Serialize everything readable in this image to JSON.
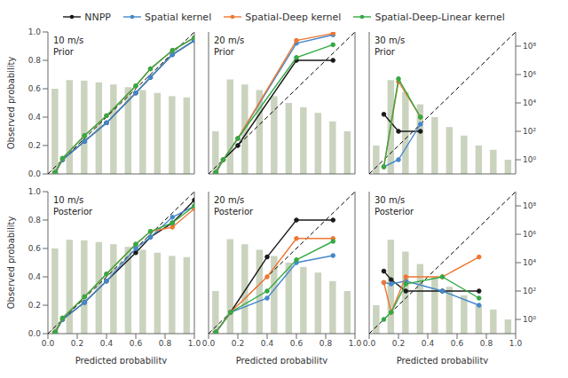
{
  "chart_data": [
    {
      "type": "line",
      "title": "10 m/s\nPrior",
      "legend": "top",
      "log": "y2",
      "y_label": "Observed probability",
      "xlim": [
        0,
        1
      ],
      "ylim": [
        0,
        1
      ],
      "y2lim": [
        0.1,
        1000000000.0
      ],
      "yticks": [
        {
          "value": 0,
          "label": "0.0"
        },
        0.2,
        0.4,
        0.6,
        0.8,
        {
          "value": 1,
          "label": "1.0"
        }
      ],
      "series": [
        {
          "type": "bar",
          "axis": "y2",
          "color": "#b8c4a8",
          "bins": [
            0.0,
            0.1,
            0.2,
            0.3,
            0.4,
            0.5,
            0.6,
            0.7,
            0.8,
            0.9,
            1.0
          ],
          "values": [
            100000.0,
            400000.0,
            370000.0,
            280000.0,
            200000.0,
            130000.0,
            80000.0,
            50000.0,
            30000.0,
            25000.0
          ]
        },
        {
          "type": "line",
          "color": "black",
          "line_style": "dashed",
          "x": [
            0,
            1
          ],
          "values": [
            0,
            1
          ]
        },
        {
          "name": "NNPP",
          "type": "line",
          "color": "#1a1a1a",
          "marker": "circle",
          "line_style": "solid",
          "x": [
            0.05,
            0.1,
            0.25,
            0.4,
            0.6,
            0.7,
            0.85,
            1.0
          ],
          "values": [
            0.01,
            0.1,
            0.23,
            0.36,
            0.57,
            0.68,
            0.84,
            0.94
          ]
        },
        {
          "name": "Spatial kernel",
          "type": "line",
          "color": "#4488CC",
          "marker": "circle",
          "line_style": "solid",
          "x": [
            0.05,
            0.1,
            0.25,
            0.4,
            0.6,
            0.7,
            0.85,
            1.0
          ],
          "values": [
            0.01,
            0.1,
            0.23,
            0.36,
            0.57,
            0.68,
            0.84,
            0.94
          ]
        },
        {
          "name": "Spatial-Deep kernel",
          "type": "line",
          "color": "#EE7733",
          "marker": "circle",
          "line_style": "solid",
          "x": [
            0.05,
            0.1,
            0.25,
            0.4,
            0.6,
            0.7,
            0.85,
            1.0
          ],
          "values": [
            0.01,
            0.11,
            0.27,
            0.41,
            0.62,
            0.74,
            0.87,
            0.96
          ]
        },
        {
          "name": "Spatial-Deep-Linear kernel",
          "type": "line",
          "color": "#33AA44",
          "marker": "circle",
          "line_style": "solid",
          "x": [
            0.05,
            0.1,
            0.25,
            0.4,
            0.6,
            0.7,
            0.85,
            1.0
          ],
          "values": [
            0.01,
            0.11,
            0.27,
            0.41,
            0.62,
            0.74,
            0.87,
            0.96
          ]
        }
      ]
    },
    {
      "type": "line",
      "title": "20 m/s\nPrior",
      "log": "y2",
      "xlim": [
        0,
        1
      ],
      "ylim": [
        0,
        1
      ],
      "y2lim": [
        0.1,
        1000000000.0
      ],
      "series": [
        {
          "type": "bar",
          "axis": "y2",
          "color": "#b8c4a8",
          "bins": [
            0.0,
            0.1,
            0.2,
            0.3,
            0.4,
            0.5,
            0.6,
            0.7,
            0.8,
            0.9,
            1.0
          ],
          "values": [
            100.0,
            450000.0,
            200000.0,
            80000.0,
            30000.0,
            10000.0,
            5000.0,
            2000.0,
            500.0,
            100.0
          ]
        },
        {
          "type": "line",
          "color": "black",
          "line_style": "dashed",
          "x": [
            0,
            1
          ],
          "values": [
            0,
            1
          ]
        },
        {
          "name": "NNPP",
          "type": "line",
          "color": "#1a1a1a",
          "marker": "circle",
          "line_style": "solid",
          "x": [
            0.05,
            0.1,
            0.2,
            0.6,
            0.85
          ],
          "values": [
            0.01,
            0.1,
            0.2,
            0.8,
            0.8
          ]
        },
        {
          "name": "Spatial kernel",
          "type": "line",
          "color": "#4488CC",
          "marker": "circle",
          "line_style": "solid",
          "x": [
            0.05,
            0.1,
            0.2,
            0.6,
            0.85
          ],
          "values": [
            0.01,
            0.1,
            0.25,
            0.92,
            0.98
          ]
        },
        {
          "name": "Spatial-Deep kernel",
          "type": "line",
          "color": "#EE7733",
          "marker": "circle",
          "line_style": "solid",
          "x": [
            0.05,
            0.1,
            0.2,
            0.6,
            0.85
          ],
          "values": [
            0.01,
            0.1,
            0.25,
            0.94,
            0.99
          ]
        },
        {
          "name": "Spatial-Deep-Linear kernel",
          "type": "line",
          "color": "#33AA44",
          "marker": "circle",
          "line_style": "solid",
          "x": [
            0.05,
            0.1,
            0.2,
            0.6,
            0.85
          ],
          "values": [
            0.01,
            0.1,
            0.25,
            0.82,
            0.91
          ]
        }
      ]
    },
    {
      "type": "line",
      "title": "30 m/s\nPrior",
      "log": "y2",
      "xlim": [
        0,
        1
      ],
      "ylim": [
        0,
        1
      ],
      "y2lim": [
        0.1,
        1000000000.0
      ],
      "y2ticks": [
        {
          "value": 1,
          "label": "10⁰"
        },
        {
          "value": 100,
          "label": "10²"
        },
        {
          "value": 10000,
          "label": "10⁴"
        },
        {
          "value": 1000000,
          "label": "10⁶"
        },
        {
          "value": 100000000,
          "label": "10⁸"
        }
      ],
      "series": [
        {
          "type": "bar",
          "axis": "y2",
          "color": "#b8c4a8",
          "bins": [
            0.0,
            0.1,
            0.2,
            0.3,
            0.4,
            0.5,
            0.6,
            0.7,
            0.8,
            0.9,
            1.0
          ],
          "values": [
            10.0,
            400000.0,
            60000.0,
            8000.0,
            1000.0,
            200.0,
            50.0,
            10.0,
            5.0,
            1.0
          ]
        },
        {
          "type": "line",
          "color": "black",
          "line_style": "dashed",
          "x": [
            0,
            1
          ],
          "values": [
            0,
            1
          ]
        },
        {
          "name": "NNPP",
          "type": "line",
          "color": "#1a1a1a",
          "marker": "circle",
          "line_style": "solid",
          "x": [
            0.1,
            0.2,
            0.35
          ],
          "values": [
            0.42,
            0.3,
            0.3
          ]
        },
        {
          "name": "Spatial kernel",
          "type": "line",
          "color": "#4488CC",
          "marker": "circle",
          "line_style": "solid",
          "x": [
            0.1,
            0.2,
            0.35
          ],
          "values": [
            0.05,
            0.1,
            0.35
          ]
        },
        {
          "name": "Spatial-Deep kernel",
          "type": "line",
          "color": "#EE7733",
          "marker": "circle",
          "line_style": "solid",
          "x": [
            0.1,
            0.2,
            0.35
          ],
          "values": [
            0.05,
            0.65,
            0.4
          ]
        },
        {
          "name": "Spatial-Deep-Linear kernel",
          "type": "line",
          "color": "#33AA44",
          "marker": "circle",
          "line_style": "solid",
          "x": [
            0.1,
            0.2,
            0.35
          ],
          "values": [
            0.05,
            0.67,
            0.4
          ]
        }
      ]
    },
    {
      "type": "line",
      "title": "10 m/s\nPosterior",
      "log": "y2",
      "x_label": "Predicted probability",
      "y_label": "Observed probability",
      "xlim": [
        0,
        1
      ],
      "ylim": [
        0,
        1
      ],
      "y2lim": [
        0.1,
        1000000000.0
      ],
      "xticks": [
        {
          "value": 0,
          "label": "0.0"
        },
        0.2,
        0.4,
        0.6,
        0.8,
        {
          "value": 1,
          "label": "1.0"
        }
      ],
      "yticks": [
        {
          "value": 0,
          "label": "0.0"
        },
        0.2,
        0.4,
        0.6,
        0.8,
        {
          "value": 1,
          "label": "1.0"
        }
      ],
      "series": [
        {
          "type": "bar",
          "axis": "y2",
          "color": "#b8c4a8",
          "bins": [
            0.0,
            0.1,
            0.2,
            0.3,
            0.4,
            0.5,
            0.6,
            0.7,
            0.8,
            0.9,
            1.0
          ],
          "values": [
            100000.0,
            400000.0,
            370000.0,
            280000.0,
            200000.0,
            130000.0,
            80000.0,
            50000.0,
            30000.0,
            25000.0
          ]
        },
        {
          "type": "line",
          "color": "black",
          "line_style": "dashed",
          "x": [
            0,
            1
          ],
          "values": [
            0,
            1
          ]
        },
        {
          "name": "NNPP",
          "type": "line",
          "color": "#1a1a1a",
          "marker": "circle",
          "line_style": "solid",
          "x": [
            0.05,
            0.1,
            0.25,
            0.4,
            0.6,
            0.7,
            0.85,
            1.0
          ],
          "values": [
            0.01,
            0.1,
            0.22,
            0.37,
            0.57,
            0.68,
            0.78,
            0.94
          ]
        },
        {
          "name": "Spatial kernel",
          "type": "line",
          "color": "#4488CC",
          "marker": "circle",
          "line_style": "solid",
          "x": [
            0.05,
            0.1,
            0.25,
            0.4,
            0.6,
            0.7,
            0.85,
            1.0
          ],
          "values": [
            0.01,
            0.1,
            0.22,
            0.37,
            0.6,
            0.68,
            0.82,
            0.9
          ]
        },
        {
          "name": "Spatial-Deep kernel",
          "type": "line",
          "color": "#EE7733",
          "marker": "circle",
          "line_style": "solid",
          "x": [
            0.05,
            0.1,
            0.25,
            0.4,
            0.6,
            0.7,
            0.85,
            1.0
          ],
          "values": [
            0.01,
            0.11,
            0.26,
            0.42,
            0.63,
            0.72,
            0.75,
            0.88
          ]
        },
        {
          "name": "Spatial-Deep-Linear kernel",
          "type": "line",
          "color": "#33AA44",
          "marker": "circle",
          "line_style": "solid",
          "x": [
            0.05,
            0.1,
            0.25,
            0.4,
            0.6,
            0.7,
            0.85,
            1.0
          ],
          "values": [
            0.01,
            0.11,
            0.26,
            0.42,
            0.63,
            0.72,
            0.78,
            0.9
          ]
        }
      ]
    },
    {
      "type": "line",
      "title": "20 m/s\nPosterior",
      "log": "y2",
      "x_label": "Predicted probability",
      "xlim": [
        0,
        1
      ],
      "ylim": [
        0,
        1
      ],
      "y2lim": [
        0.1,
        1000000000.0
      ],
      "xticks": [
        {
          "value": 0,
          "label": "0.0"
        },
        0.2,
        0.4,
        0.6,
        0.8,
        {
          "value": 1,
          "label": "1.0"
        }
      ],
      "series": [
        {
          "type": "bar",
          "axis": "y2",
          "color": "#b8c4a8",
          "bins": [
            0.0,
            0.1,
            0.2,
            0.3,
            0.4,
            0.5,
            0.6,
            0.7,
            0.8,
            0.9,
            1.0
          ],
          "values": [
            100.0,
            450000.0,
            200000.0,
            80000.0,
            30000.0,
            10000.0,
            5000.0,
            2000.0,
            500.0,
            100.0
          ]
        },
        {
          "type": "line",
          "color": "black",
          "line_style": "dashed",
          "x": [
            0,
            1
          ],
          "values": [
            0,
            1
          ]
        },
        {
          "name": "NNPP",
          "type": "line",
          "color": "#1a1a1a",
          "marker": "circle",
          "line_style": "solid",
          "x": [
            0.05,
            0.15,
            0.4,
            0.6,
            0.85
          ],
          "values": [
            0.01,
            0.15,
            0.54,
            0.8,
            0.8
          ]
        },
        {
          "name": "Spatial kernel",
          "type": "line",
          "color": "#4488CC",
          "marker": "circle",
          "line_style": "solid",
          "x": [
            0.05,
            0.15,
            0.4,
            0.6,
            0.85
          ],
          "values": [
            0.01,
            0.15,
            0.25,
            0.5,
            0.55
          ]
        },
        {
          "name": "Spatial-Deep kernel",
          "type": "line",
          "color": "#EE7733",
          "marker": "circle",
          "line_style": "solid",
          "x": [
            0.05,
            0.15,
            0.4,
            0.6,
            0.85
          ],
          "values": [
            0.01,
            0.15,
            0.4,
            0.67,
            0.67
          ]
        },
        {
          "name": "Spatial-Deep-Linear kernel",
          "type": "line",
          "color": "#33AA44",
          "marker": "circle",
          "line_style": "solid",
          "x": [
            0.05,
            0.15,
            0.4,
            0.6,
            0.85
          ],
          "values": [
            0.01,
            0.15,
            0.3,
            0.52,
            0.65
          ]
        }
      ]
    },
    {
      "type": "line",
      "title": "30 m/s\nPosterior",
      "log": "y2",
      "x_label": "Predicted probability",
      "xlim": [
        0,
        1
      ],
      "ylim": [
        0,
        1
      ],
      "y2lim": [
        0.1,
        1000000000.0
      ],
      "xticks": [
        {
          "value": 0,
          "label": "0.0"
        },
        0.2,
        0.4,
        0.6,
        0.8,
        {
          "value": 1,
          "label": "1.0"
        }
      ],
      "y2ticks": [
        {
          "value": 1,
          "label": "10⁰"
        },
        {
          "value": 100,
          "label": "10²"
        },
        {
          "value": 10000,
          "label": "10⁴"
        },
        {
          "value": 1000000,
          "label": "10⁶"
        },
        {
          "value": 100000000,
          "label": "10⁸"
        }
      ],
      "series": [
        {
          "type": "bar",
          "axis": "y2",
          "color": "#b8c4a8",
          "bins": [
            0.0,
            0.1,
            0.2,
            0.3,
            0.4,
            0.5,
            0.6,
            0.7,
            0.8,
            0.9,
            1.0
          ],
          "values": [
            10.0,
            400000.0,
            60000.0,
            8000.0,
            1000.0,
            200.0,
            50.0,
            10.0,
            5.0,
            1.0
          ]
        },
        {
          "type": "line",
          "color": "black",
          "line_style": "dashed",
          "x": [
            0,
            1
          ],
          "values": [
            0,
            1
          ]
        },
        {
          "name": "NNPP",
          "type": "line",
          "color": "#1a1a1a",
          "marker": "circle",
          "line_style": "solid",
          "x": [
            0.1,
            0.15,
            0.25,
            0.5,
            0.75
          ],
          "values": [
            0.44,
            0.38,
            0.3,
            0.3,
            0.3
          ]
        },
        {
          "name": "Spatial kernel",
          "type": "line",
          "color": "#4488CC",
          "marker": "circle",
          "line_style": "solid",
          "x": [
            0.1,
            0.15,
            0.25,
            0.5,
            0.75
          ],
          "values": [
            0.36,
            0.35,
            0.37,
            0.3,
            0.2
          ]
        },
        {
          "name": "Spatial-Deep kernel",
          "type": "line",
          "color": "#EE7733",
          "marker": "circle",
          "line_style": "solid",
          "x": [
            0.1,
            0.15,
            0.25,
            0.5,
            0.75
          ],
          "values": [
            0.36,
            0.15,
            0.4,
            0.4,
            0.54
          ]
        },
        {
          "name": "Spatial-Deep-Linear kernel",
          "type": "line",
          "color": "#33AA44",
          "marker": "circle",
          "line_style": "solid",
          "x": [
            0.1,
            0.15,
            0.25,
            0.5,
            0.75
          ],
          "values": [
            0.1,
            0.15,
            0.35,
            0.4,
            0.25
          ]
        }
      ]
    }
  ]
}
